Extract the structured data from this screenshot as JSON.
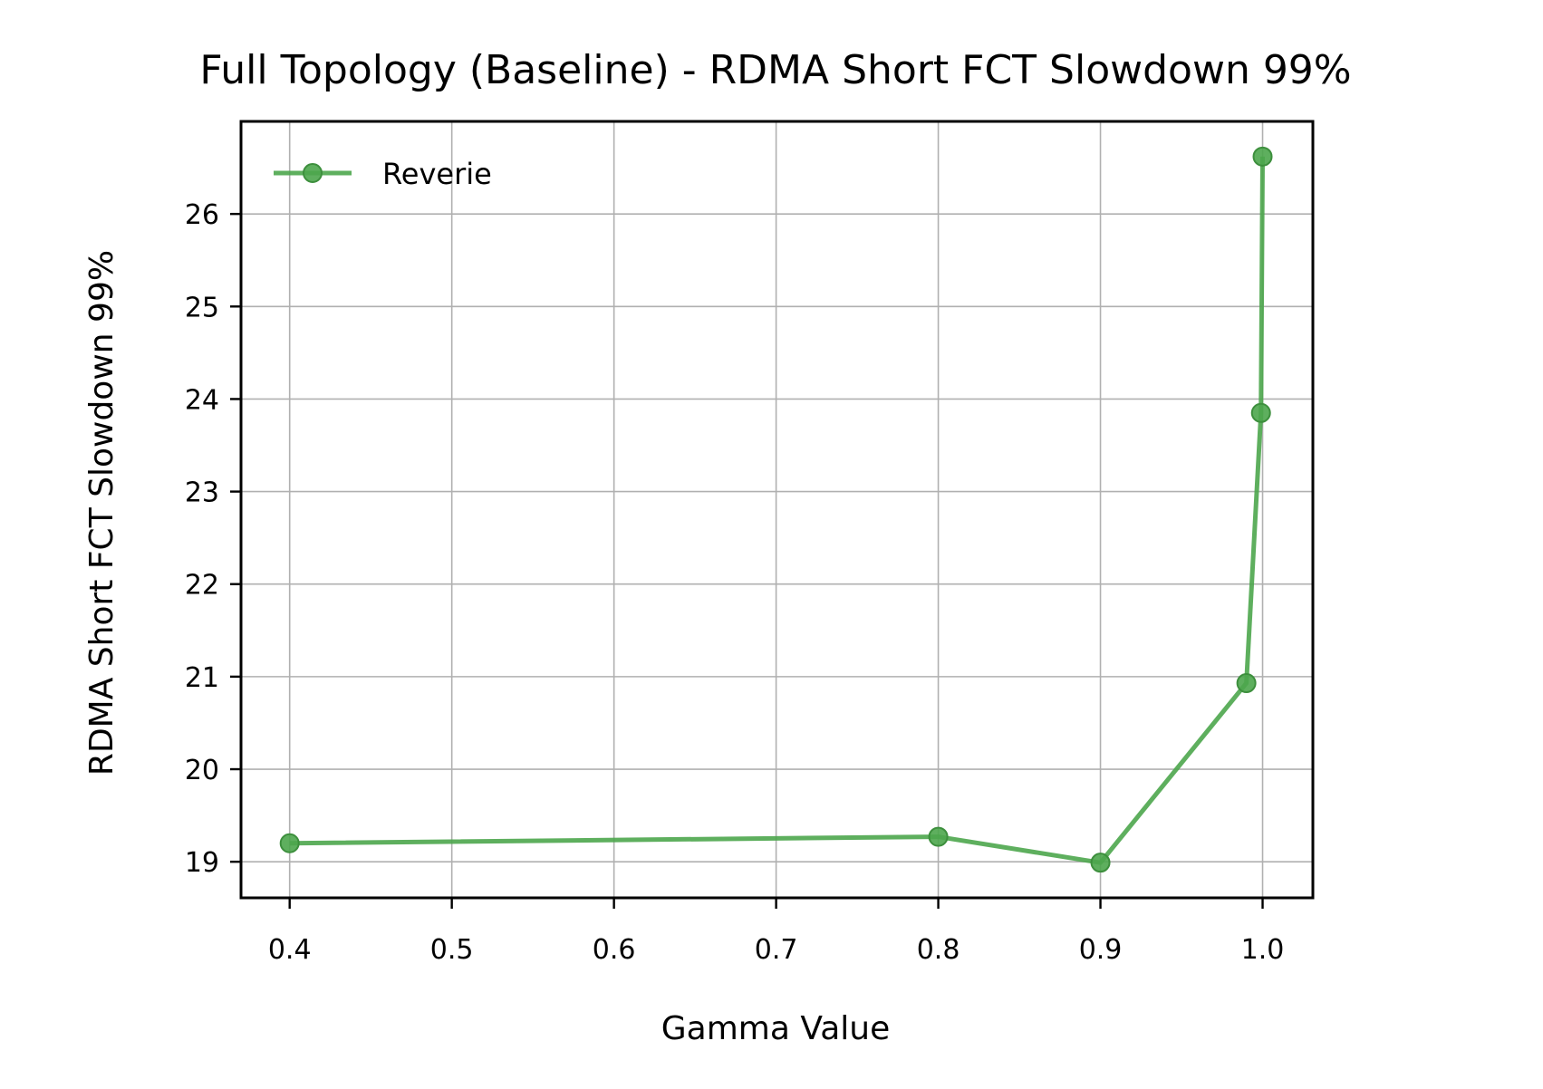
{
  "chart_data": {
    "type": "line",
    "title": "Full Topology (Baseline) - RDMA Short FCT Slowdown 99%",
    "xlabel": "Gamma Value",
    "ylabel": "RDMA Short FCT Slowdown 99%",
    "xlim": [
      0.37,
      1.031
    ],
    "ylim": [
      18.61,
      27.0
    ],
    "xticks": [
      0.4,
      0.5,
      0.6,
      0.7,
      0.8,
      0.9,
      1.0
    ],
    "xtick_labels": [
      "0.4",
      "0.5",
      "0.6",
      "0.7",
      "0.8",
      "0.9",
      "1.0"
    ],
    "yticks": [
      19,
      20,
      21,
      22,
      23,
      24,
      25,
      26
    ],
    "ytick_labels": [
      "19",
      "20",
      "21",
      "22",
      "23",
      "24",
      "25",
      "26"
    ],
    "grid": true,
    "legend_position": "upper-left",
    "series": [
      {
        "name": "Reverie",
        "color": "#4ca64c",
        "marker": "circle",
        "x": [
          0.4,
          0.8,
          0.9,
          0.99,
          0.999,
          1.0
        ],
        "y": [
          19.2,
          19.27,
          18.99,
          20.93,
          23.85,
          26.62
        ]
      }
    ]
  }
}
